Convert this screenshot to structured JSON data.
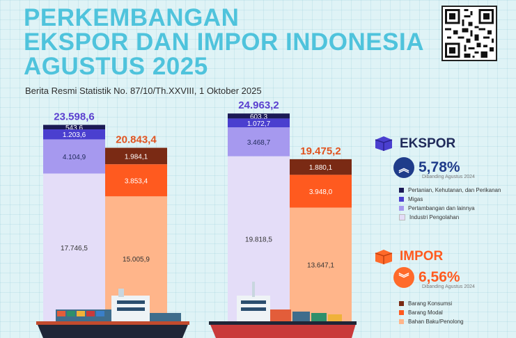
{
  "title_lines": [
    "PERKEMBANGAN",
    "EKSPOR DAN IMPOR INDONESIA",
    "AGUSTUS 2025"
  ],
  "subtitle": "Berita Resmi Statistik No. 87/10/Th.XXVIII, 1 Oktober 2025",
  "colors": {
    "title": "#4fc3dc",
    "ekspor": [
      "#1b1a55",
      "#4a3fcf",
      "#a699ef",
      "#e4ddf8"
    ],
    "impor": [
      "#7a2a14",
      "#ff5a1f",
      "#ffb58a"
    ]
  },
  "chart_data": {
    "type": "bar",
    "stacked": true,
    "unit": "",
    "groups": [
      {
        "ekspor": {
          "total": "23.598,6",
          "values": [
            543.6,
            1203.6,
            4104.9,
            17746.5
          ],
          "labels": [
            "543,6",
            "1.203,6",
            "4.104,9",
            "17.746,5"
          ]
        },
        "impor": {
          "total": "20.843,4",
          "values": [
            1984.1,
            3853.4,
            15005.9
          ],
          "labels": [
            "1.984,1",
            "3.853,4",
            "15.005,9"
          ]
        }
      },
      {
        "ekspor": {
          "total": "24.963,2",
          "values": [
            603.3,
            1072.7,
            3468.7,
            19818.5
          ],
          "labels": [
            "603,3",
            "1.072,7",
            "3.468,7",
            "19.818,5"
          ]
        },
        "impor": {
          "total": "19.475,2",
          "values": [
            1880.1,
            3948.0,
            13647.1
          ],
          "labels": [
            "1.880,1",
            "3.948,0",
            "13.647,1"
          ]
        }
      }
    ],
    "ekspor_series": [
      "Pertanian, Kehutanan, dan Perikanan",
      "Migas",
      "Pertambangan dan lainnya",
      "Industri Pengolahan"
    ],
    "impor_series": [
      "Barang Konsumsi",
      "Barang Modal",
      "Bahan Baku/Penolong"
    ]
  },
  "legend": {
    "ekspor": {
      "heading": "EKSPOR",
      "pct": "5,78%",
      "note": "Dibanding Agustus 2024"
    },
    "impor": {
      "heading": "IMPOR",
      "pct": "6,56%",
      "note": "Dibanding Agustus 2024"
    }
  }
}
